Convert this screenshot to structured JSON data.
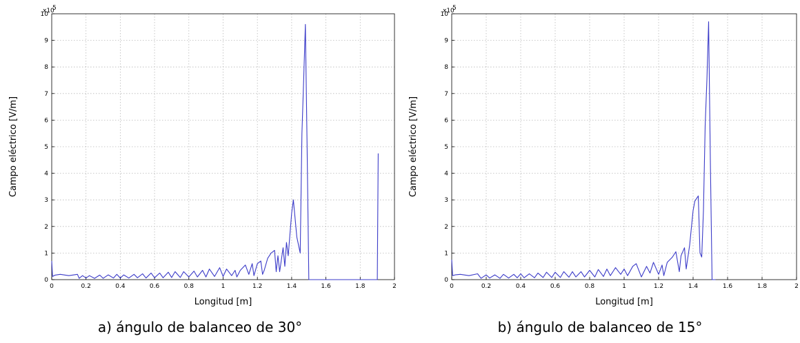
{
  "chart_data": [
    {
      "type": "line",
      "caption": "a) ángulo de balanceo de 30°",
      "xlabel": "Longitud [m]",
      "ylabel": "Campo eléctrico [V/m]",
      "exponent_label": "x10",
      "exponent_power": "5",
      "xlim": [
        0,
        2
      ],
      "ylim": [
        0,
        10
      ],
      "xticks": [
        "0",
        "0.2",
        "0.4",
        "0.6",
        "0.8",
        "1",
        "1.2",
        "1.4",
        "1.6",
        "1.8",
        "2"
      ],
      "yticks": [
        "0",
        "1",
        "2",
        "3",
        "4",
        "5",
        "6",
        "7",
        "8",
        "9",
        "10"
      ],
      "grid": true,
      "line_color": "#3a3ac8",
      "series": [
        {
          "x": [
            0,
            0.005,
            0.02,
            0.05,
            0.1,
            0.15,
            0.16,
            0.18,
            0.2,
            0.22,
            0.25,
            0.28,
            0.3,
            0.33,
            0.36,
            0.38,
            0.4,
            0.42,
            0.45,
            0.48,
            0.5,
            0.53,
            0.55,
            0.58,
            0.6,
            0.63,
            0.65,
            0.68,
            0.7,
            0.72,
            0.75,
            0.77,
            0.8,
            0.83,
            0.85,
            0.88,
            0.9,
            0.92,
            0.95,
            0.98,
            1.0,
            1.02,
            1.05,
            1.07,
            1.08,
            1.1,
            1.13,
            1.15,
            1.17,
            1.18,
            1.2,
            1.22,
            1.23,
            1.24,
            1.26,
            1.28,
            1.3,
            1.31,
            1.32,
            1.33,
            1.35,
            1.36,
            1.37,
            1.38,
            1.4,
            1.41,
            1.43,
            1.45,
            1.46,
            1.47,
            1.48,
            1.49,
            1.5,
            1.51,
            1.52,
            1.53,
            1.9,
            1.905
          ],
          "y": [
            0.7,
            0.12,
            0.17,
            0.2,
            0.15,
            0.2,
            0.05,
            0.15,
            0.06,
            0.15,
            0.05,
            0.17,
            0.05,
            0.18,
            0.06,
            0.2,
            0.06,
            0.18,
            0.06,
            0.2,
            0.07,
            0.22,
            0.06,
            0.25,
            0.07,
            0.25,
            0.07,
            0.28,
            0.08,
            0.3,
            0.08,
            0.3,
            0.1,
            0.32,
            0.1,
            0.35,
            0.1,
            0.4,
            0.12,
            0.45,
            0.12,
            0.4,
            0.15,
            0.35,
            0.1,
            0.35,
            0.55,
            0.2,
            0.6,
            0.15,
            0.6,
            0.7,
            0.2,
            0.35,
            0.8,
            1.0,
            1.1,
            0.3,
            0.9,
            0.3,
            1.2,
            0.5,
            1.4,
            0.9,
            2.5,
            3.0,
            1.6,
            1.0,
            5.5,
            7.5,
            9.6,
            5.0,
            0.0,
            0.0,
            0.0,
            0.0,
            0.0,
            4.75
          ]
        }
      ]
    },
    {
      "type": "line",
      "caption": "b) ángulo de balanceo de 15°",
      "xlabel": "Longitud [m]",
      "ylabel": "Campo eléctrico [V/m]",
      "exponent_label": "x10",
      "exponent_power": "5",
      "xlim": [
        0,
        2
      ],
      "ylim": [
        0,
        10
      ],
      "xticks": [
        "0",
        "0.2",
        "0.4",
        "0.6",
        "0.8",
        "1",
        "1.2",
        "1.4",
        "1.6",
        "1.8",
        "2"
      ],
      "yticks": [
        "0",
        "1",
        "2",
        "3",
        "4",
        "5",
        "6",
        "7",
        "8",
        "9",
        "10"
      ],
      "grid": true,
      "line_color": "#3a3ac8",
      "series": [
        {
          "x": [
            0,
            0.005,
            0.02,
            0.05,
            0.1,
            0.15,
            0.17,
            0.2,
            0.22,
            0.25,
            0.28,
            0.3,
            0.33,
            0.36,
            0.38,
            0.4,
            0.42,
            0.45,
            0.48,
            0.5,
            0.53,
            0.55,
            0.58,
            0.6,
            0.63,
            0.65,
            0.68,
            0.7,
            0.72,
            0.75,
            0.77,
            0.8,
            0.83,
            0.85,
            0.88,
            0.9,
            0.92,
            0.95,
            0.98,
            1.0,
            1.02,
            1.05,
            1.07,
            1.1,
            1.13,
            1.15,
            1.17,
            1.2,
            1.22,
            1.23,
            1.25,
            1.28,
            1.3,
            1.32,
            1.33,
            1.35,
            1.36,
            1.38,
            1.4,
            1.41,
            1.43,
            1.44,
            1.45,
            1.46,
            1.47,
            1.48,
            1.49,
            1.5,
            1.51,
            1.52,
            1.53
          ],
          "y": [
            0.75,
            0.15,
            0.18,
            0.2,
            0.15,
            0.22,
            0.05,
            0.18,
            0.06,
            0.18,
            0.05,
            0.2,
            0.06,
            0.2,
            0.07,
            0.22,
            0.07,
            0.22,
            0.07,
            0.25,
            0.08,
            0.28,
            0.08,
            0.28,
            0.08,
            0.3,
            0.09,
            0.3,
            0.1,
            0.3,
            0.1,
            0.35,
            0.1,
            0.38,
            0.12,
            0.4,
            0.15,
            0.45,
            0.2,
            0.4,
            0.15,
            0.5,
            0.6,
            0.1,
            0.5,
            0.25,
            0.65,
            0.2,
            0.55,
            0.15,
            0.65,
            0.85,
            1.05,
            0.3,
            0.9,
            1.2,
            0.4,
            1.3,
            2.6,
            2.95,
            3.15,
            1.0,
            0.85,
            2.6,
            5.8,
            7.5,
            9.7,
            4.5,
            0.0,
            0.0,
            0.0
          ]
        }
      ]
    }
  ]
}
